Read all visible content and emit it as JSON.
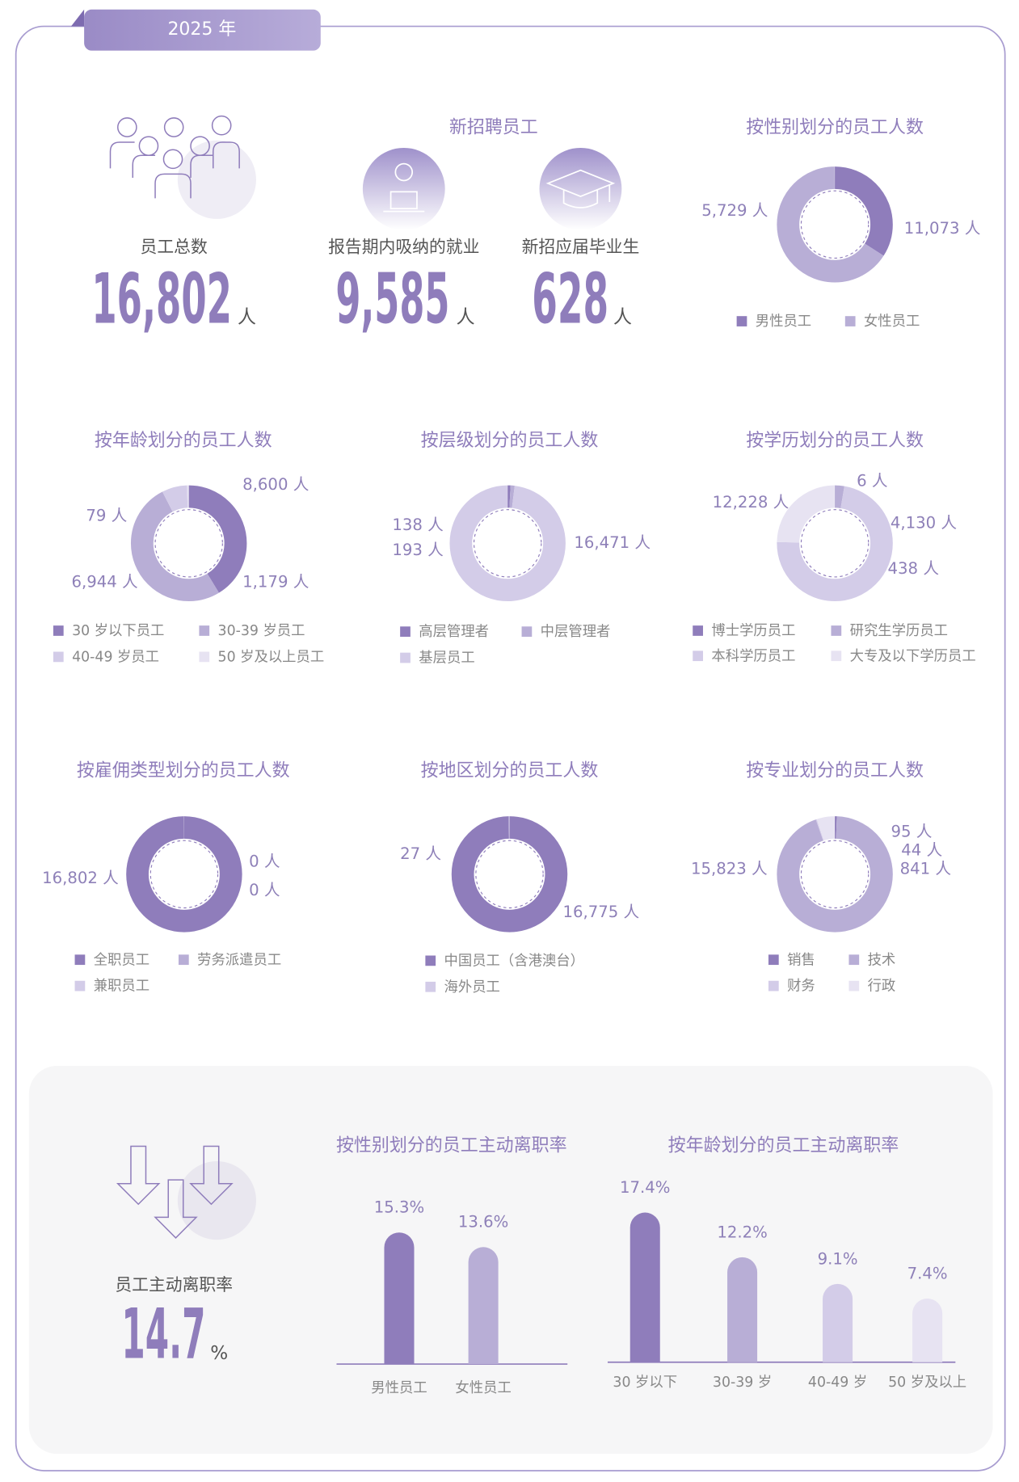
{
  "badge": "2025 年",
  "stats": {
    "total": {
      "label": "员工总数",
      "value": "16,802",
      "unit": "人"
    },
    "recruit_title": "新招聘员工",
    "employment": {
      "label": "报告期内吸纳的就业",
      "value": "9,585",
      "unit": "人"
    },
    "graduates": {
      "label": "新招应届毕业生",
      "value": "628",
      "unit": "人"
    }
  },
  "attrition": {
    "label": "员工主动离职率",
    "value": "14.7",
    "unit": "%"
  },
  "chart_data": [
    {
      "type": "donut",
      "title": "按性别划分的员工人数",
      "categories": [
        "男性员工",
        "女性员工"
      ],
      "values": [
        5729,
        11073
      ],
      "value_labels": [
        "5,729 人",
        "11,073 人"
      ],
      "colors": [
        "#8f7dbb",
        "#b8aed6"
      ]
    },
    {
      "type": "donut",
      "title": "按年龄划分的员工人数",
      "categories": [
        "30 岁以下员工",
        "30-39 岁员工",
        "40-49 岁员工",
        "50 岁及以上员工"
      ],
      "values": [
        6944,
        8600,
        1179,
        79
      ],
      "value_labels": [
        "6,944 人",
        "8,600 人",
        "1,179 人",
        "79 人"
      ],
      "colors": [
        "#8f7dbb",
        "#b8aed6",
        "#d3cce8",
        "#e7e3f2"
      ]
    },
    {
      "type": "donut",
      "title": "按层级划分的员工人数",
      "categories": [
        "高层管理者",
        "中层管理者",
        "基层员工"
      ],
      "values": [
        138,
        193,
        16471
      ],
      "value_labels": [
        "138 人",
        "193 人",
        "16,471 人"
      ],
      "colors": [
        "#8f7dbb",
        "#b8aed6",
        "#d3cce8"
      ]
    },
    {
      "type": "donut",
      "title": "按学历划分的员工人数",
      "categories": [
        "博士学历员工",
        "研究生学历员工",
        "本科学历员工",
        "大专及以下学历员工"
      ],
      "values": [
        6,
        438,
        12228,
        4130
      ],
      "value_labels": [
        "6 人",
        "438 人",
        "12,228 人",
        "4,130 人"
      ],
      "colors": [
        "#8f7dbb",
        "#b8aed6",
        "#d3cce8",
        "#e7e3f2"
      ]
    },
    {
      "type": "donut",
      "title": "按雇佣类型划分的员工人数",
      "categories": [
        "全职员工",
        "劳务派遣员工",
        "兼职员工"
      ],
      "values": [
        16802,
        0,
        0
      ],
      "value_labels": [
        "16,802 人",
        "0 人",
        "0 人"
      ],
      "colors": [
        "#8f7dbb",
        "#b8aed6",
        "#d3cce8"
      ]
    },
    {
      "type": "donut",
      "title": "按地区划分的员工人数",
      "categories": [
        "中国员工（含港澳台）",
        "海外员工"
      ],
      "values": [
        16775,
        27
      ],
      "value_labels": [
        "16,775 人",
        "27 人"
      ],
      "colors": [
        "#8f7dbb",
        "#d3cce8"
      ]
    },
    {
      "type": "donut",
      "title": "按专业划分的员工人数",
      "categories": [
        "销售",
        "技术",
        "财务",
        "行政"
      ],
      "values": [
        95,
        15823,
        44,
        841
      ],
      "value_labels": [
        "95 人",
        "15,823 人",
        "44 人",
        "841 人"
      ],
      "colors": [
        "#8f7dbb",
        "#b8aed6",
        "#d3cce8",
        "#e7e3f2"
      ]
    },
    {
      "type": "bar",
      "title": "按性别划分的员工主动离职率",
      "categories": [
        "男性员工",
        "女性员工"
      ],
      "values": [
        15.3,
        13.6
      ],
      "value_labels": [
        "15.3%",
        "13.6%"
      ],
      "colors": [
        "#8f7dbb",
        "#b8aed6"
      ]
    },
    {
      "type": "bar",
      "title": "按年龄划分的员工主动离职率",
      "categories": [
        "30 岁以下",
        "30-39 岁",
        "40-49 岁",
        "50 岁及以上"
      ],
      "values": [
        17.4,
        12.2,
        9.1,
        7.4
      ],
      "value_labels": [
        "17.4%",
        "12.2%",
        "9.1%",
        "7.4%"
      ],
      "colors": [
        "#8f7dbb",
        "#b8aed6",
        "#d3cce8",
        "#e7e3f2"
      ]
    }
  ]
}
